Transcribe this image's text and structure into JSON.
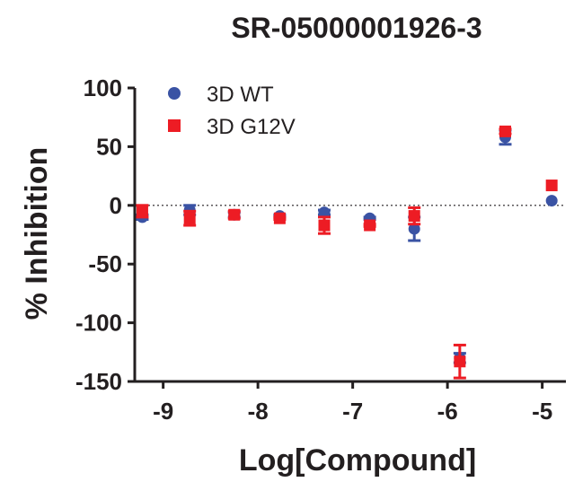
{
  "chart_data": {
    "type": "scatter",
    "title": "SR-05000001926-3",
    "xlabel": "Log[Compound]",
    "ylabel": "% Inhibition",
    "xlim": [
      -9.3,
      -4.75
    ],
    "ylim": [
      -150,
      100
    ],
    "x_ticks": [
      -9,
      -8,
      -7,
      -6,
      -5
    ],
    "y_ticks": [
      100,
      50,
      0,
      -50,
      -100,
      -150
    ],
    "x_tick_labels": [
      "-9",
      "-8",
      "-7",
      "-6",
      "-5"
    ],
    "y_tick_labels": [
      "100",
      "50",
      "0",
      "-50",
      "-100",
      "-150"
    ],
    "zero_line": "dotted",
    "legend_position": "top-left",
    "series": [
      {
        "name": "3D WT",
        "marker": "circle",
        "color": "#3a53a4",
        "points": [
          {
            "x": -9.22,
            "y": -10,
            "err": 2
          },
          {
            "x": -8.72,
            "y": -4,
            "err": 4
          },
          {
            "x": -8.25,
            "y": -8,
            "err": 2
          },
          {
            "x": -7.77,
            "y": -9,
            "err": 1
          },
          {
            "x": -7.3,
            "y": -6,
            "err": 2
          },
          {
            "x": -6.82,
            "y": -11,
            "err": 1
          },
          {
            "x": -6.35,
            "y": -20,
            "err": 10
          },
          {
            "x": -5.87,
            "y": -130,
            "err": 4
          },
          {
            "x": -5.39,
            "y": 58,
            "err": 6
          },
          {
            "x": -4.9,
            "y": 4,
            "err": 0
          }
        ]
      },
      {
        "name": "3D G12V",
        "marker": "square",
        "color": "#ed1c24",
        "points": [
          {
            "x": -9.22,
            "y": -5,
            "err": 5
          },
          {
            "x": -8.72,
            "y": -11,
            "err": 6
          },
          {
            "x": -8.25,
            "y": -8,
            "err": 3
          },
          {
            "x": -7.77,
            "y": -11,
            "err": 1
          },
          {
            "x": -7.3,
            "y": -17,
            "err": 7
          },
          {
            "x": -6.82,
            "y": -17,
            "err": 1
          },
          {
            "x": -6.35,
            "y": -9,
            "err": 7
          },
          {
            "x": -5.87,
            "y": -133,
            "err": 14
          },
          {
            "x": -5.39,
            "y": 63,
            "err": 2
          },
          {
            "x": -4.9,
            "y": 17,
            "err": 0
          }
        ]
      }
    ]
  }
}
